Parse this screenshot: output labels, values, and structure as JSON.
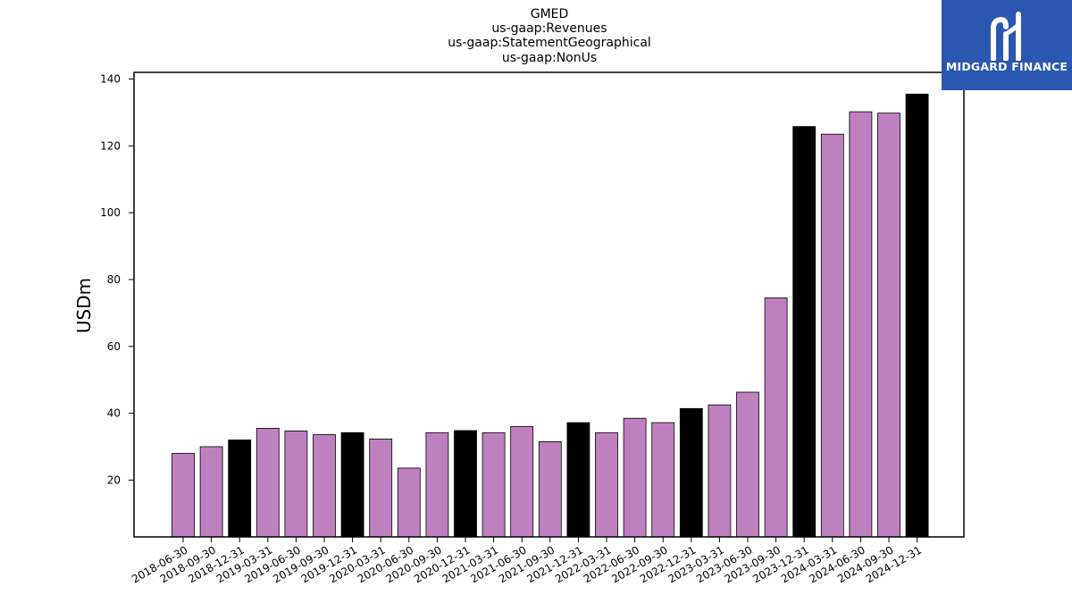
{
  "chart_data": {
    "type": "bar",
    "title_lines": [
      "GMED",
      "us-gaap:Revenues",
      "us-gaap:StatementGeographical",
      "us-gaap:NonUs"
    ],
    "xlabel": "",
    "ylabel": "USDm",
    "ylim": [
      3,
      142
    ],
    "yticks": [
      20,
      40,
      60,
      80,
      100,
      120,
      140
    ],
    "grid": false,
    "categories": [
      "2018-06-30",
      "2018-09-30",
      "2018-12-31",
      "2019-03-31",
      "2019-06-30",
      "2019-09-30",
      "2019-12-31",
      "2020-03-31",
      "2020-06-30",
      "2020-09-30",
      "2020-12-31",
      "2021-03-31",
      "2021-06-30",
      "2021-09-30",
      "2021-12-31",
      "2022-03-31",
      "2022-06-30",
      "2022-09-30",
      "2022-12-31",
      "2023-03-31",
      "2023-06-30",
      "2023-09-30",
      "2023-12-31",
      "2024-03-31",
      "2024-06-30",
      "2024-09-30",
      "2024-12-31"
    ],
    "values": [
      28.0,
      30.0,
      32.0,
      35.5,
      34.7,
      33.6,
      34.2,
      32.3,
      23.6,
      34.2,
      34.8,
      34.2,
      36.0,
      31.5,
      37.2,
      34.2,
      38.5,
      37.2,
      41.4,
      42.5,
      46.3,
      74.5,
      125.8,
      123.5,
      130.2,
      129.8,
      135.5
    ],
    "bar_colors": {
      "quarter": "#bf80bf",
      "year_end": "#000000"
    },
    "year_end_indices": [
      2,
      6,
      10,
      14,
      18,
      22,
      26
    ]
  },
  "logo": {
    "text": "MIDGARD FINANCE",
    "background": "#2a58b0"
  }
}
